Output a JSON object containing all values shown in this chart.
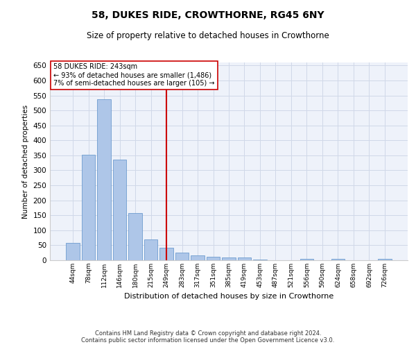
{
  "title": "58, DUKES RIDE, CROWTHORNE, RG45 6NY",
  "subtitle": "Size of property relative to detached houses in Crowthorne",
  "xlabel": "Distribution of detached houses by size in Crowthorne",
  "ylabel": "Number of detached properties",
  "bar_color": "#aec6e8",
  "bar_edge_color": "#5b8fc9",
  "categories": [
    "44sqm",
    "78sqm",
    "112sqm",
    "146sqm",
    "180sqm",
    "215sqm",
    "249sqm",
    "283sqm",
    "317sqm",
    "351sqm",
    "385sqm",
    "419sqm",
    "453sqm",
    "487sqm",
    "521sqm",
    "556sqm",
    "590sqm",
    "624sqm",
    "658sqm",
    "692sqm",
    "726sqm"
  ],
  "values": [
    57,
    352,
    538,
    336,
    157,
    70,
    42,
    25,
    16,
    11,
    9,
    9,
    3,
    0,
    0,
    5,
    0,
    5,
    0,
    0,
    5
  ],
  "vline_x": 6.0,
  "vline_color": "#cc0000",
  "annotation_text": "58 DUKES RIDE: 243sqm\n← 93% of detached houses are smaller (1,486)\n7% of semi-detached houses are larger (105) →",
  "annotation_box_color": "#ffffff",
  "annotation_box_edge": "#cc0000",
  "ylim": [
    0,
    660
  ],
  "yticks": [
    0,
    50,
    100,
    150,
    200,
    250,
    300,
    350,
    400,
    450,
    500,
    550,
    600,
    650
  ],
  "footer": "Contains HM Land Registry data © Crown copyright and database right 2024.\nContains public sector information licensed under the Open Government Licence v3.0.",
  "grid_color": "#d0d8e8",
  "bg_color": "#eef2fa",
  "fig_bg": "#ffffff"
}
